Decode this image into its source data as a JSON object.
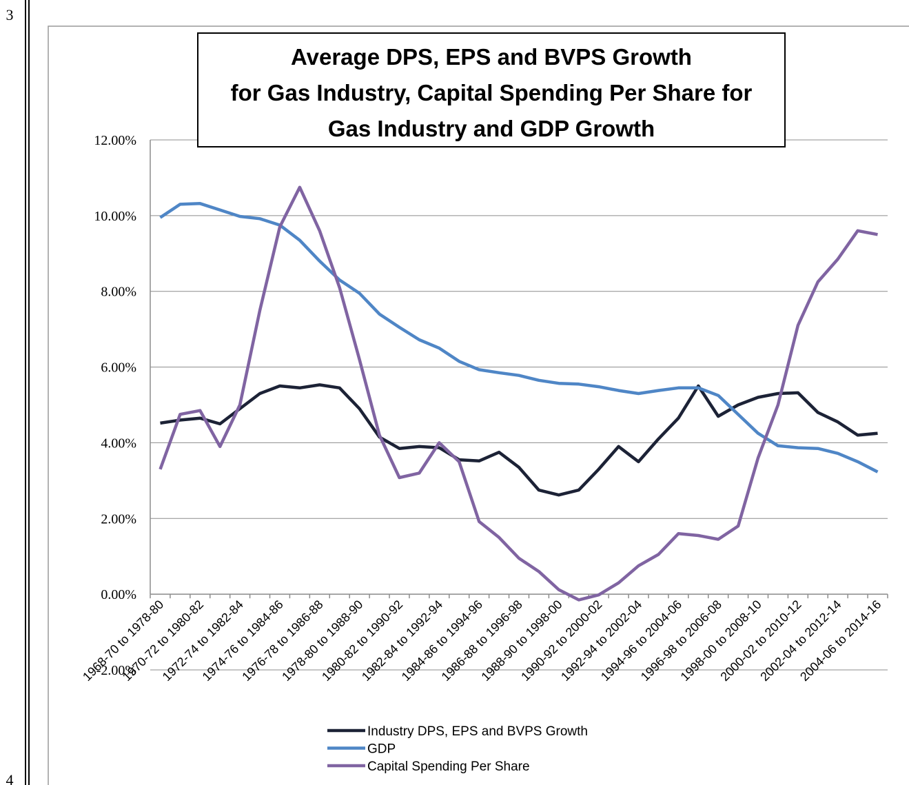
{
  "margin_numbers": [
    "3",
    "4"
  ],
  "chart_data": {
    "type": "line",
    "title": [
      "Average DPS, EPS and BVPS Growth",
      "for Gas Industry, Capital Spending Per Share for",
      "Gas Industry and GDP Growth"
    ],
    "categories": [
      "1968-70 to 1978-80",
      null,
      "1970-72 to 1980-82",
      null,
      "1972-74 to 1982-84",
      null,
      "1974-76 to 1984-86",
      null,
      "1976-78 to 1986-88",
      null,
      "1978-80 to 1988-90",
      null,
      "1980-82 to 1990-92",
      null,
      "1982-84 to 1992-94",
      null,
      "1984-86 to 1994-96",
      null,
      "1986-88 to 1996-98",
      null,
      "1988-90 to 1998-00",
      null,
      "1990-92 to 2000-02",
      null,
      "1992-94 to 2002-04",
      null,
      "1994-96 to 2004-06",
      null,
      "1996-98 to 2006-08",
      null,
      "1998-00 to 2008-10",
      null,
      "2000-02 to 2010-12",
      null,
      "2002-04 to 2012-14",
      null,
      "2004-06 to 2014-16"
    ],
    "series": [
      {
        "name": "Industry DPS, EPS and BVPS Growth",
        "color": "#1c2236",
        "values": [
          4.52,
          4.6,
          4.65,
          4.5,
          4.9,
          5.3,
          5.5,
          5.45,
          5.53,
          5.45,
          4.9,
          4.15,
          3.85,
          3.9,
          3.87,
          3.55,
          3.52,
          3.75,
          3.35,
          2.75,
          2.62,
          2.75,
          3.3,
          3.9,
          3.5,
          4.1,
          4.65,
          5.5,
          4.7,
          5.0,
          5.2,
          5.3,
          5.32,
          4.8,
          4.55,
          4.2,
          4.25
        ]
      },
      {
        "name": "GDP",
        "color": "#4f86c6",
        "values": [
          9.95,
          10.3,
          10.32,
          10.15,
          9.98,
          9.92,
          9.75,
          9.35,
          8.8,
          8.3,
          7.95,
          7.4,
          7.05,
          6.72,
          6.5,
          6.15,
          5.93,
          5.85,
          5.78,
          5.65,
          5.57,
          5.55,
          5.48,
          5.38,
          5.3,
          5.38,
          5.45,
          5.45,
          5.25,
          4.75,
          4.25,
          3.92,
          3.87,
          3.85,
          3.72,
          3.5,
          3.23
        ]
      },
      {
        "name": "Capital Spending Per Share",
        "color": "#8064a2",
        "values": [
          3.3,
          4.75,
          4.85,
          3.9,
          5.0,
          7.5,
          9.7,
          10.75,
          9.6,
          8.1,
          6.2,
          4.2,
          3.08,
          3.2,
          4.0,
          3.5,
          1.92,
          1.5,
          0.95,
          0.6,
          0.12,
          -0.15,
          -0.02,
          0.3,
          0.75,
          1.05,
          1.6,
          1.55,
          1.45,
          1.8,
          3.6,
          5.0,
          7.1,
          8.25,
          8.85,
          9.6,
          9.5
        ]
      }
    ],
    "ylim": [
      -2,
      12
    ],
    "yticks": [
      {
        "value": -2,
        "label": "-2.00%"
      },
      {
        "value": 0,
        "label": "0.00%"
      },
      {
        "value": 2,
        "label": "2.00%"
      },
      {
        "value": 4,
        "label": "4.00%"
      },
      {
        "value": 6,
        "label": "6.00%"
      },
      {
        "value": 8,
        "label": "8.00%"
      },
      {
        "value": 10,
        "label": "10.00%"
      },
      {
        "value": 12,
        "label": "12.00%"
      }
    ],
    "grid": true,
    "legend": "bottom"
  }
}
